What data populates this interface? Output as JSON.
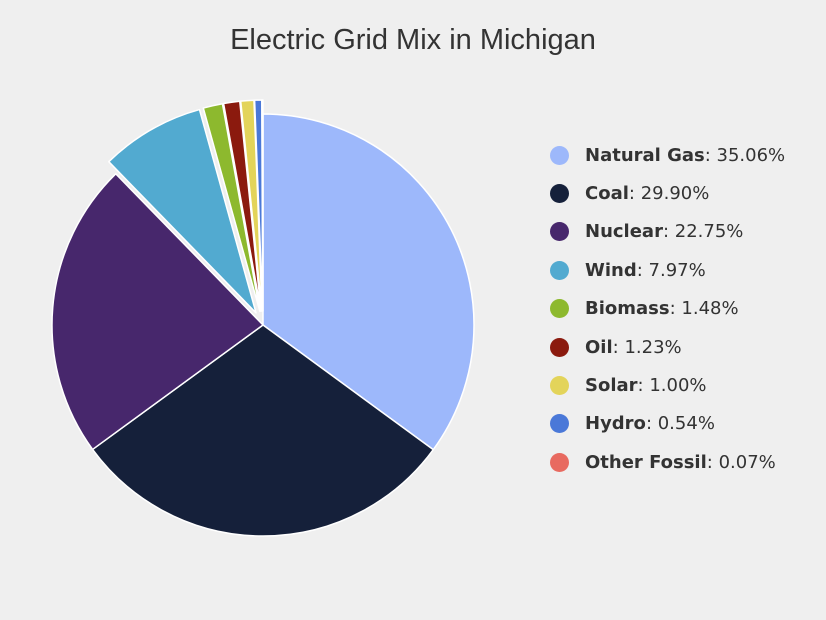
{
  "chart_data": {
    "type": "pie",
    "title": "Electric Grid Mix in Michigan",
    "legend_position": "right",
    "slices": [
      {
        "label": "Natural Gas",
        "value": 35.06,
        "value_text": "35.06%",
        "color": "#9db8fb"
      },
      {
        "label": "Coal",
        "value": 29.9,
        "value_text": "29.90%",
        "color": "#15203a"
      },
      {
        "label": "Nuclear",
        "value": 22.75,
        "value_text": "22.75%",
        "color": "#47276c"
      },
      {
        "label": "Wind",
        "value": 7.97,
        "value_text": "7.97%",
        "color": "#52aad0",
        "exploded": true
      },
      {
        "label": "Biomass",
        "value": 1.48,
        "value_text": "1.48%",
        "color": "#8db92e",
        "exploded": true
      },
      {
        "label": "Oil",
        "value": 1.23,
        "value_text": "1.23%",
        "color": "#8b1a0e",
        "exploded": true
      },
      {
        "label": "Solar",
        "value": 1.0,
        "value_text": "1.00%",
        "color": "#e3d45a",
        "exploded": true
      },
      {
        "label": "Hydro",
        "value": 0.54,
        "value_text": "0.54%",
        "color": "#4a78d8",
        "exploded": true
      },
      {
        "label": "Other Fossil",
        "value": 0.07,
        "value_text": "0.07%",
        "color": "#e86a60",
        "exploded": true
      }
    ]
  }
}
